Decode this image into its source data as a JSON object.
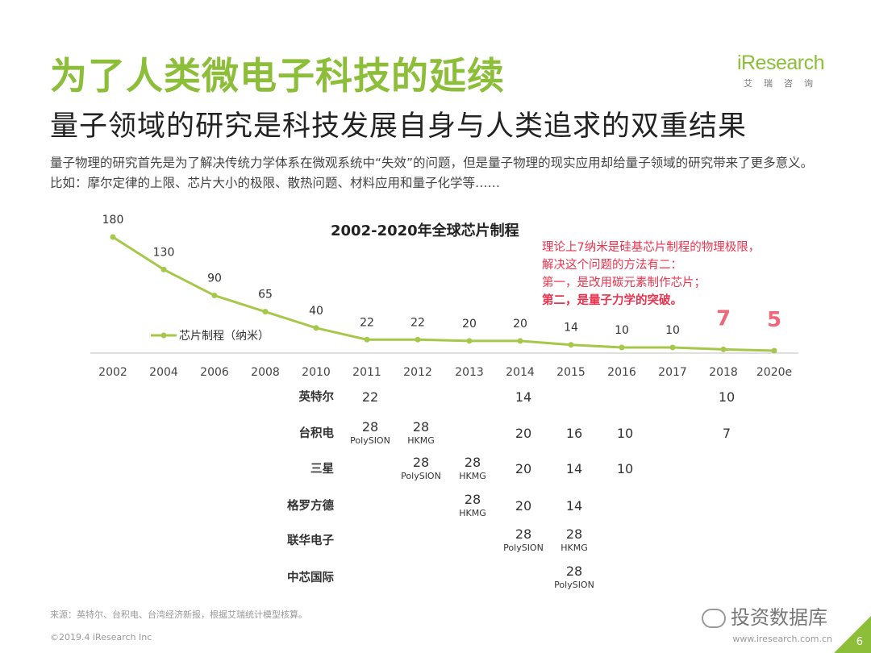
{
  "header": {
    "title": "为了人类微电子科技的延续",
    "subtitle": "量子领域的研究是科技发展自身与人类追求的双重结果",
    "body": "量子物理的研究首先是为了解决传统力学体系在微观系统中“失效”的问题，但是量子物理的现实应用却给量子领域的研究带来了更多意义。比如：摩尔定律的上限、芯片大小的极限、散热问题、材料应用和量子化学等……"
  },
  "logo": {
    "brand": "iResearch",
    "brand_cn": "艾瑞咨询"
  },
  "chart_data": {
    "type": "line",
    "title": "2002-2020年全球芯片制程",
    "categories": [
      "2002",
      "2004",
      "2006",
      "2008",
      "2010",
      "2011",
      "2012",
      "2013",
      "2014",
      "2015",
      "2016",
      "2017",
      "2018",
      "2020e"
    ],
    "series": [
      {
        "name": "芯片制程（纳米）",
        "values": [
          180,
          130,
          90,
          65,
          40,
          22,
          22,
          20,
          20,
          14,
          10,
          10,
          7,
          5
        ]
      }
    ],
    "data_labels": [
      "180",
      "130",
      "90",
      "65",
      "40",
      "22",
      "22",
      "20",
      "20",
      "14",
      "10",
      "10",
      "7",
      "5"
    ],
    "line_color": "#a6c84a",
    "highlight_color": "#e8344e",
    "companies": [
      {
        "name": "英特尔",
        "cells": [
          {
            "year": "2011",
            "value": "22"
          },
          {
            "year": "2014",
            "value": "14"
          },
          {
            "year": "2018",
            "value": "10"
          }
        ]
      },
      {
        "name": "台积电",
        "cells": [
          {
            "year": "2011",
            "value": "28",
            "sub": "PolySION"
          },
          {
            "year": "2012",
            "value": "28",
            "sub": "HKMG"
          },
          {
            "year": "2014",
            "value": "20"
          },
          {
            "year": "2015",
            "value": "16"
          },
          {
            "year": "2016",
            "value": "10"
          },
          {
            "year": "2018",
            "value": "7"
          }
        ]
      },
      {
        "name": "三星",
        "cells": [
          {
            "year": "2012",
            "value": "28",
            "sub": "PolySION"
          },
          {
            "year": "2013",
            "value": "28",
            "sub": "HKMG"
          },
          {
            "year": "2014",
            "value": "20"
          },
          {
            "year": "2015",
            "value": "14"
          },
          {
            "year": "2016",
            "value": "10"
          }
        ]
      },
      {
        "name": "格罗方德",
        "cells": [
          {
            "year": "2013",
            "value": "28",
            "sub": "HKMG"
          },
          {
            "year": "2014",
            "value": "20"
          },
          {
            "year": "2015",
            "value": "14"
          }
        ]
      },
      {
        "name": "联华电子",
        "cells": [
          {
            "year": "2014",
            "value": "28",
            "sub": "PolySION"
          },
          {
            "year": "2015",
            "value": "28",
            "sub": "HKMG"
          }
        ]
      },
      {
        "name": "中芯国际",
        "cells": [
          {
            "year": "2015",
            "value": "28",
            "sub": "PolySION"
          }
        ]
      }
    ]
  },
  "note": {
    "line1": "理论上7纳米是硅基芯片制程的物理极限，",
    "line2": "解决这个问题的方法有二：",
    "line3": "第一，是改用碳元素制作芯片；",
    "line4": "第二，是量子力学的突破。"
  },
  "footer": {
    "source": "来源：英特尔、台积电、台湾经济新报，根据艾瑞统计模型核算。",
    "copyright": "©2019.4 iResearch Inc",
    "url": "www.iresearch.com.cn",
    "page": "6"
  },
  "watermark": {
    "text": "投资数据库"
  }
}
